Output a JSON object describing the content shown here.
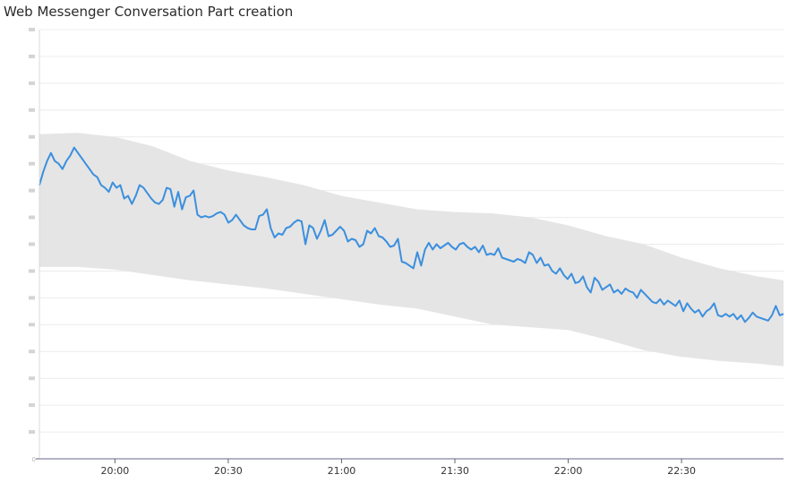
{
  "widget": {
    "title": "Web Messenger Conversation Part creation"
  },
  "chart_data": {
    "type": "line",
    "title": "Web Messenger Conversation Part creation",
    "xlabel": "",
    "ylabel": "",
    "x_start_time": "19:40",
    "x_end_time": "22:57",
    "xticks": [
      "20:00",
      "20:30",
      "21:00",
      "21:30",
      "22:00",
      "22:30"
    ],
    "ylim": [
      0,
      16
    ],
    "yticks": [
      0,
      1,
      2,
      3,
      4,
      5,
      6,
      7,
      8,
      9,
      10,
      11,
      12,
      13,
      14,
      15,
      16
    ],
    "ytick_labels_shown": [
      "0"
    ],
    "grid": true,
    "legend": "none",
    "colors": {
      "line": "#3b8fde",
      "band": "#e5e5e5",
      "grid": "#ececec",
      "axis": "#9a9ab5"
    },
    "series": [
      {
        "values": [
          10.2,
          10.7,
          11.1,
          11.4,
          11.1,
          11.0,
          10.8,
          11.1,
          11.3,
          11.6,
          11.4,
          11.2,
          11.0,
          10.8,
          10.6,
          10.5,
          10.2,
          10.1,
          9.95,
          10.3,
          10.1,
          10.2,
          9.7,
          9.8,
          9.5,
          9.8,
          10.2,
          10.1,
          9.9,
          9.7,
          9.55,
          9.5,
          9.65,
          10.1,
          10.05,
          9.4,
          9.95,
          9.3,
          9.75,
          9.8,
          10.0,
          9.1,
          9.0,
          9.05,
          9.0,
          9.05,
          9.15,
          9.2,
          9.1,
          8.8,
          8.9,
          9.1,
          8.9,
          8.7,
          8.6,
          8.55,
          8.55,
          9.05,
          9.1,
          9.3,
          8.6,
          8.25,
          8.4,
          8.35,
          8.6,
          8.65,
          8.8,
          8.9,
          8.85,
          8.0,
          8.7,
          8.6,
          8.2,
          8.5,
          8.9,
          8.3,
          8.35,
          8.5,
          8.65,
          8.5,
          8.1,
          8.2,
          8.15,
          7.9,
          8.0,
          8.5,
          8.4,
          8.6,
          8.3,
          8.25,
          8.1,
          7.9,
          7.95,
          8.2,
          7.35,
          7.3,
          7.2,
          7.1,
          7.7,
          7.2,
          7.8,
          8.05,
          7.8,
          8.0,
          7.85,
          7.95,
          8.05,
          7.9,
          7.8,
          8.0,
          8.05,
          7.9,
          7.8,
          7.9,
          7.7,
          7.95,
          7.6,
          7.65,
          7.6,
          7.85,
          7.5,
          7.45,
          7.4,
          7.35,
          7.45,
          7.4,
          7.3,
          7.7,
          7.6,
          7.3,
          7.5,
          7.2,
          7.25,
          7.0,
          6.9,
          7.1,
          6.85,
          6.7,
          6.9,
          6.55,
          6.6,
          6.8,
          6.4,
          6.2,
          6.75,
          6.6,
          6.3,
          6.4,
          6.5,
          6.2,
          6.3,
          6.15,
          6.35,
          6.25,
          6.2,
          6.0,
          6.3,
          6.15,
          6.0,
          5.85,
          5.8,
          5.95,
          5.75,
          5.9,
          5.8,
          5.7,
          5.9,
          5.5,
          5.8,
          5.6,
          5.45,
          5.55,
          5.3,
          5.5,
          5.6,
          5.8,
          5.35,
          5.3,
          5.4,
          5.3,
          5.4,
          5.2,
          5.35,
          5.1,
          5.25,
          5.45,
          5.3,
          5.25,
          5.2,
          5.15,
          5.35,
          5.7,
          5.35,
          5.4
        ]
      }
    ],
    "band_upper": [
      [
        "19:40",
        12.1
      ],
      [
        "19:50",
        12.15
      ],
      [
        "20:00",
        12.0
      ],
      [
        "20:10",
        11.65
      ],
      [
        "20:20",
        11.1
      ],
      [
        "20:30",
        10.75
      ],
      [
        "20:40",
        10.5
      ],
      [
        "20:50",
        10.2
      ],
      [
        "21:00",
        9.8
      ],
      [
        "21:10",
        9.55
      ],
      [
        "21:20",
        9.3
      ],
      [
        "21:30",
        9.2
      ],
      [
        "21:40",
        9.15
      ],
      [
        "21:50",
        9.0
      ],
      [
        "22:00",
        8.7
      ],
      [
        "22:10",
        8.3
      ],
      [
        "22:20",
        8.0
      ],
      [
        "22:30",
        7.5
      ],
      [
        "22:40",
        7.1
      ],
      [
        "22:50",
        6.8
      ],
      [
        "22:57",
        6.65
      ]
    ],
    "band_lower": [
      [
        "19:40",
        7.15
      ],
      [
        "19:50",
        7.15
      ],
      [
        "20:00",
        7.05
      ],
      [
        "20:10",
        6.85
      ],
      [
        "20:20",
        6.65
      ],
      [
        "20:30",
        6.5
      ],
      [
        "20:40",
        6.35
      ],
      [
        "20:50",
        6.15
      ],
      [
        "21:00",
        5.95
      ],
      [
        "21:10",
        5.75
      ],
      [
        "21:20",
        5.6
      ],
      [
        "21:30",
        5.3
      ],
      [
        "21:40",
        5.0
      ],
      [
        "21:50",
        4.9
      ],
      [
        "22:00",
        4.8
      ],
      [
        "22:10",
        4.45
      ],
      [
        "22:20",
        4.05
      ],
      [
        "22:30",
        3.8
      ],
      [
        "22:40",
        3.65
      ],
      [
        "22:50",
        3.55
      ],
      [
        "22:57",
        3.45
      ]
    ]
  }
}
